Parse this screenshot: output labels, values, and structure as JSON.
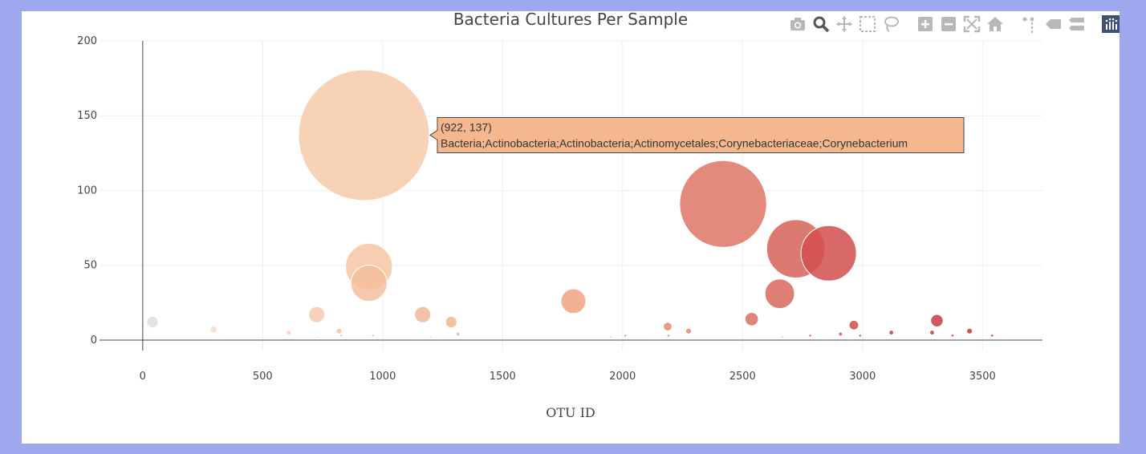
{
  "chart_data": {
    "type": "scatter",
    "title": "Bacteria Cultures Per Sample",
    "xlabel": "OTU ID",
    "ylabel": "",
    "xlim": [
      -180,
      3750
    ],
    "ylim": [
      -7,
      200
    ],
    "x_ticks": [
      0,
      500,
      1000,
      1500,
      2000,
      2500,
      3000,
      3500
    ],
    "y_ticks": [
      0,
      50,
      100,
      150,
      200
    ],
    "x_tick_labels": [
      "0",
      "500",
      "1000",
      "1500",
      "2000",
      "2500",
      "3000",
      "3500"
    ],
    "y_tick_labels": [
      "0",
      "50",
      "100",
      "150",
      "200"
    ],
    "grid": true,
    "bubble_size_encodes": "y",
    "color_encodes": "x",
    "points": [
      {
        "x": 41,
        "y": 12,
        "color": "#dedede"
      },
      {
        "x": 296,
        "y": 7,
        "color": "#f9d7c3"
      },
      {
        "x": 482,
        "y": 2,
        "color": "#f9d7c3"
      },
      {
        "x": 609,
        "y": 5,
        "color": "#f7cdb4"
      },
      {
        "x": 725,
        "y": 17,
        "color": "#f7caaf"
      },
      {
        "x": 730,
        "y": 2,
        "color": "#f7caaf"
      },
      {
        "x": 818,
        "y": 6,
        "color": "#f6c5a7"
      },
      {
        "x": 827,
        "y": 3,
        "color": "#f6c5a7"
      },
      {
        "x": 922,
        "y": 137,
        "color": "#f6caaa"
      },
      {
        "x": 943,
        "y": 49,
        "color": "#f5c6a5"
      },
      {
        "x": 943,
        "y": 38,
        "color": "#f4c09d"
      },
      {
        "x": 960,
        "y": 3,
        "color": "#f4c09d"
      },
      {
        "x": 1167,
        "y": 17,
        "color": "#f2b898"
      },
      {
        "x": 1200,
        "y": 2,
        "color": "#f2b898"
      },
      {
        "x": 1286,
        "y": 12,
        "color": "#f1b590"
      },
      {
        "x": 1314,
        "y": 4,
        "color": "#f1b590"
      },
      {
        "x": 1795,
        "y": 26,
        "color": "#eea37f"
      },
      {
        "x": 1950,
        "y": 2,
        "color": "#ec9a78"
      },
      {
        "x": 2011,
        "y": 3,
        "color": "#ea9474"
      },
      {
        "x": 2188,
        "y": 9,
        "color": "#e8896e"
      },
      {
        "x": 2191,
        "y": 3,
        "color": "#e8896e"
      },
      {
        "x": 2275,
        "y": 6,
        "color": "#e6836b"
      },
      {
        "x": 2419,
        "y": 91,
        "color": "#de7566"
      },
      {
        "x": 2538,
        "y": 14,
        "color": "#dc6f62"
      },
      {
        "x": 2655,
        "y": 31,
        "color": "#d9675c"
      },
      {
        "x": 2722,
        "y": 61,
        "color": "#d66358"
      },
      {
        "x": 2665,
        "y": 2,
        "color": "#d66358"
      },
      {
        "x": 2782,
        "y": 3,
        "color": "#d45e55"
      },
      {
        "x": 2859,
        "y": 58,
        "color": "#d24f4f"
      },
      {
        "x": 2908,
        "y": 4,
        "color": "#d0514f"
      },
      {
        "x": 2964,
        "y": 10,
        "color": "#ce4c4c"
      },
      {
        "x": 2990,
        "y": 3,
        "color": "#ce4c4c"
      },
      {
        "x": 3120,
        "y": 5,
        "color": "#ca4445"
      },
      {
        "x": 3290,
        "y": 5,
        "color": "#c73c3f"
      },
      {
        "x": 3310,
        "y": 13,
        "color": "#c73c3f"
      },
      {
        "x": 3375,
        "y": 3,
        "color": "#c53a3e"
      },
      {
        "x": 3446,
        "y": 6,
        "color": "#c4363c"
      },
      {
        "x": 3540,
        "y": 3,
        "color": "#c2333a"
      }
    ],
    "hover": {
      "x": 922,
      "y": 137,
      "header": "(922, 137)",
      "label": "Bacteria;Actinobacteria;Actinobacteria;Actinomycetales;Corynebacteriaceae;Corynebacterium",
      "bg_color": "#f5b88e"
    }
  },
  "modebar": {
    "icons": [
      "camera-icon",
      "zoom-icon",
      "pan-icon",
      "box-select-icon",
      "lasso-select-icon",
      "zoom-in-icon",
      "zoom-out-icon",
      "autoscale-icon",
      "reset-axes-icon",
      "spike-lines-icon",
      "hover-closest-icon",
      "hover-compare-icon",
      "plotly-logo-icon"
    ],
    "active_icon": "zoom-icon",
    "icon_color": "#b8b8b8",
    "active_color": "#555555",
    "logo_color": "#3f4f75"
  }
}
